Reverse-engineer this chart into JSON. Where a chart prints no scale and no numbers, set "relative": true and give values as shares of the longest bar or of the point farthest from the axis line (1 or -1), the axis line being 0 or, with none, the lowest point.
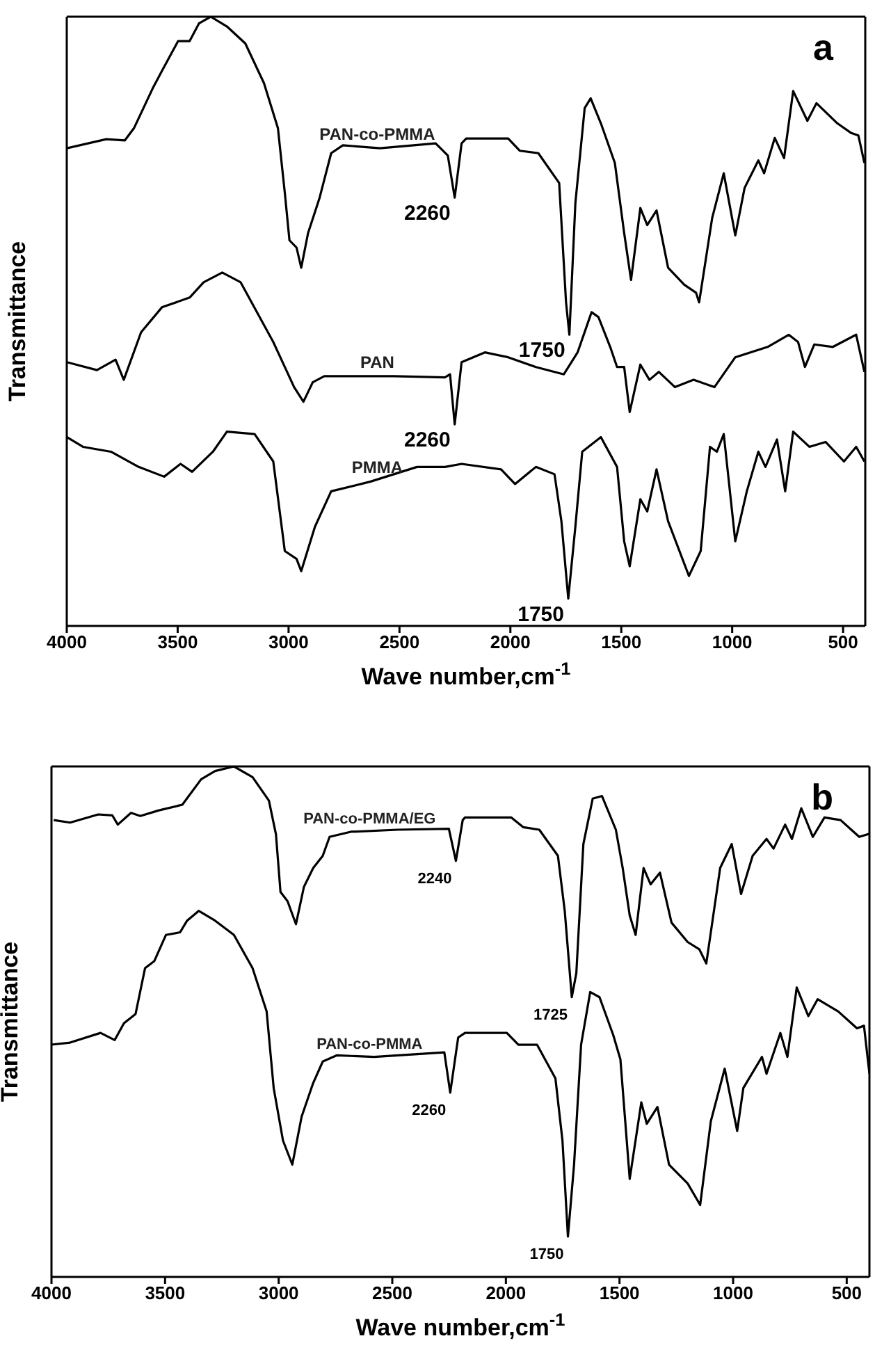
{
  "chart_data": [
    {
      "type": "line",
      "relative": true,
      "xlabel": "Wave number,cm$^{-1}$",
      "ylabel": "Transmittance",
      "xlim": [
        4000,
        400
      ],
      "xticks": [
        4000,
        3500,
        3000,
        2500,
        2000,
        1500,
        1000,
        500
      ],
      "tick_labels": "x",
      "grid": false,
      "legend": false,
      "annotations": [
        "a",
        {
          "text": "2260",
          "x": 2251,
          "y": 0.703
        },
        {
          "text": "1750",
          "x": 1734,
          "y": 0.478
        },
        {
          "text": "2260",
          "x": 2251,
          "y": 0.331
        },
        {
          "text": "1750",
          "x": 1739,
          "y": 0.045
        }
      ],
      "series": [
        {
          "name": "PAN-co-PMMA",
          "color": "#000000",
          "x": [
            4000,
            3822,
            3738,
            3697,
            3613,
            3571,
            3498,
            3446,
            3404,
            3351,
            3278,
            3195,
            3111,
            3048,
            3017,
            2996,
            2964,
            2943,
            2912,
            2860,
            2808,
            2755,
            2588,
            2337,
            2282,
            2251,
            2220,
            2199,
            2010,
            1958,
            1874,
            1780,
            1749,
            1734,
            1707,
            1665,
            1638,
            1592,
            1529,
            1487,
            1456,
            1414,
            1383,
            1341,
            1289,
            1216,
            1163,
            1149,
            1090,
            1038,
            986,
            944,
            882,
            856,
            808,
            766,
            725,
            661,
            620,
            526,
            463,
            431,
            404
          ],
          "values": [
            0.784,
            0.799,
            0.797,
            0.817,
            0.882,
            0.911,
            0.96,
            0.96,
            0.989,
            1.0,
            0.984,
            0.956,
            0.891,
            0.817,
            0.711,
            0.633,
            0.621,
            0.588,
            0.645,
            0.703,
            0.776,
            0.789,
            0.784,
            0.792,
            0.772,
            0.703,
            0.792,
            0.8,
            0.8,
            0.78,
            0.776,
            0.727,
            0.531,
            0.478,
            0.694,
            0.85,
            0.866,
            0.825,
            0.76,
            0.645,
            0.568,
            0.686,
            0.658,
            0.682,
            0.588,
            0.56,
            0.547,
            0.531,
            0.67,
            0.743,
            0.641,
            0.719,
            0.764,
            0.743,
            0.801,
            0.768,
            0.878,
            0.829,
            0.858,
            0.825,
            0.809,
            0.805,
            0.76
          ]
        },
        {
          "name": "PAN",
          "color": "#000000",
          "x": [
            4000,
            3864,
            3780,
            3743,
            3665,
            3571,
            3446,
            3383,
            3299,
            3216,
            3069,
            2975,
            2933,
            2891,
            2839,
            2525,
            2295,
            2272,
            2251,
            2220,
            2115,
            2010,
            1885,
            1759,
            1697,
            1634,
            1603,
            1550,
            1519,
            1487,
            1462,
            1414,
            1373,
            1331,
            1258,
            1174,
            1080,
            986,
            840,
            745,
            703,
            672,
            630,
            546,
            441,
            404
          ],
          "values": [
            0.433,
            0.42,
            0.437,
            0.404,
            0.482,
            0.523,
            0.539,
            0.564,
            0.58,
            0.564,
            0.466,
            0.392,
            0.368,
            0.4,
            0.41,
            0.41,
            0.408,
            0.413,
            0.331,
            0.433,
            0.449,
            0.441,
            0.425,
            0.413,
            0.449,
            0.515,
            0.507,
            0.458,
            0.425,
            0.425,
            0.351,
            0.429,
            0.404,
            0.417,
            0.392,
            0.404,
            0.392,
            0.441,
            0.458,
            0.478,
            0.466,
            0.425,
            0.462,
            0.458,
            0.478,
            0.417
          ]
        },
        {
          "name": "PMMA",
          "color": "#000000",
          "x": [
            4000,
            3927,
            3801,
            3676,
            3561,
            3487,
            3435,
            3341,
            3278,
            3153,
            3069,
            3017,
            2964,
            2943,
            2881,
            2808,
            2630,
            2421,
            2295,
            2220,
            2042,
            1979,
            1885,
            1801,
            1770,
            1739,
            1707,
            1676,
            1592,
            1519,
            1487,
            1462,
            1414,
            1383,
            1341,
            1289,
            1195,
            1142,
            1100,
            1069,
            1038,
            986,
            934,
            882,
            850,
            798,
            761,
            725,
            652,
            579,
            496,
            441,
            404
          ],
          "values": [
            0.31,
            0.294,
            0.286,
            0.261,
            0.245,
            0.266,
            0.253,
            0.286,
            0.319,
            0.315,
            0.27,
            0.123,
            0.11,
            0.09,
            0.163,
            0.221,
            0.237,
            0.261,
            0.261,
            0.266,
            0.257,
            0.233,
            0.261,
            0.249,
            0.172,
            0.045,
            0.163,
            0.286,
            0.31,
            0.261,
            0.139,
            0.098,
            0.208,
            0.188,
            0.257,
            0.172,
            0.082,
            0.123,
            0.294,
            0.286,
            0.315,
            0.139,
            0.221,
            0.286,
            0.261,
            0.306,
            0.221,
            0.319,
            0.294,
            0.302,
            0.27,
            0.294,
            0.27
          ]
        }
      ]
    },
    {
      "type": "line",
      "relative": true,
      "xlabel": "Wave number,cm$^{-1}$",
      "ylabel": "Transmittance",
      "xlim": [
        4000,
        400
      ],
      "xticks": [
        4000,
        3500,
        3000,
        2500,
        2000,
        1500,
        1000,
        500
      ],
      "tick_labels": "x",
      "grid": false,
      "legend": false,
      "annotations": [
        "b",
        {
          "text": "2240",
          "x": 2220,
          "y": 0.815
        },
        {
          "text": "1725",
          "x": 1710,
          "y": 0.548
        },
        {
          "text": "2260",
          "x": 2245,
          "y": 0.361
        },
        {
          "text": "1750",
          "x": 1727,
          "y": 0.079
        }
      ],
      "series": [
        {
          "name": "PAN-co-PMMA/EG",
          "color": "#000000",
          "x": [
            3990,
            3918,
            3794,
            3732,
            3708,
            3650,
            3609,
            3527,
            3424,
            3341,
            3280,
            3197,
            3115,
            3043,
            3012,
            2992,
            2961,
            2924,
            2889,
            2848,
            2806,
            2776,
            2683,
            2477,
            2251,
            2220,
            2190,
            2180,
            1976,
            1924,
            1853,
            1771,
            1741,
            1710,
            1690,
            1659,
            1618,
            1577,
            1516,
            1486,
            1455,
            1429,
            1394,
            1363,
            1322,
            1271,
            1200,
            1149,
            1118,
            1057,
            1006,
            965,
            914,
            853,
            822,
            771,
            741,
            700,
            649,
            598,
            527,
            445,
            400
          ],
          "values": [
            0.895,
            0.89,
            0.906,
            0.904,
            0.886,
            0.909,
            0.903,
            0.914,
            0.925,
            0.975,
            0.991,
            1.0,
            0.979,
            0.933,
            0.867,
            0.754,
            0.736,
            0.691,
            0.764,
            0.801,
            0.825,
            0.862,
            0.872,
            0.876,
            0.878,
            0.815,
            0.895,
            0.9,
            0.9,
            0.881,
            0.876,
            0.825,
            0.717,
            0.548,
            0.595,
            0.848,
            0.937,
            0.942,
            0.876,
            0.801,
            0.708,
            0.67,
            0.801,
            0.769,
            0.792,
            0.694,
            0.656,
            0.642,
            0.614,
            0.801,
            0.848,
            0.75,
            0.825,
            0.858,
            0.839,
            0.886,
            0.858,
            0.918,
            0.862,
            0.9,
            0.895,
            0.862,
            0.868
          ]
        },
        {
          "name": "PAN-co-PMMA",
          "color": "#000000",
          "x": [
            4000,
            3918,
            3784,
            3722,
            3681,
            3630,
            3588,
            3547,
            3496,
            3434,
            3403,
            3352,
            3280,
            3197,
            3115,
            3053,
            3022,
            2981,
            2940,
            2899,
            2848,
            2806,
            2745,
            2580,
            2271,
            2245,
            2210,
            2180,
            1996,
            1945,
            1863,
            1782,
            1751,
            1727,
            1700,
            1669,
            1629,
            1588,
            1527,
            1496,
            1455,
            1404,
            1380,
            1333,
            1282,
            1200,
            1145,
            1098,
            1037,
            982,
            955,
            873,
            853,
            792,
            761,
            720,
            669,
            628,
            537,
            455,
            424,
            400
          ],
          "values": [
            0.455,
            0.459,
            0.478,
            0.464,
            0.497,
            0.515,
            0.605,
            0.619,
            0.67,
            0.675,
            0.698,
            0.717,
            0.698,
            0.67,
            0.605,
            0.52,
            0.37,
            0.267,
            0.22,
            0.314,
            0.38,
            0.422,
            0.434,
            0.431,
            0.44,
            0.361,
            0.469,
            0.478,
            0.478,
            0.455,
            0.455,
            0.389,
            0.267,
            0.079,
            0.22,
            0.455,
            0.558,
            0.548,
            0.473,
            0.426,
            0.192,
            0.342,
            0.3,
            0.333,
            0.22,
            0.183,
            0.141,
            0.305,
            0.408,
            0.286,
            0.37,
            0.431,
            0.398,
            0.478,
            0.431,
            0.567,
            0.511,
            0.544,
            0.52,
            0.487,
            0.492,
            0.398
          ]
        }
      ]
    }
  ]
}
